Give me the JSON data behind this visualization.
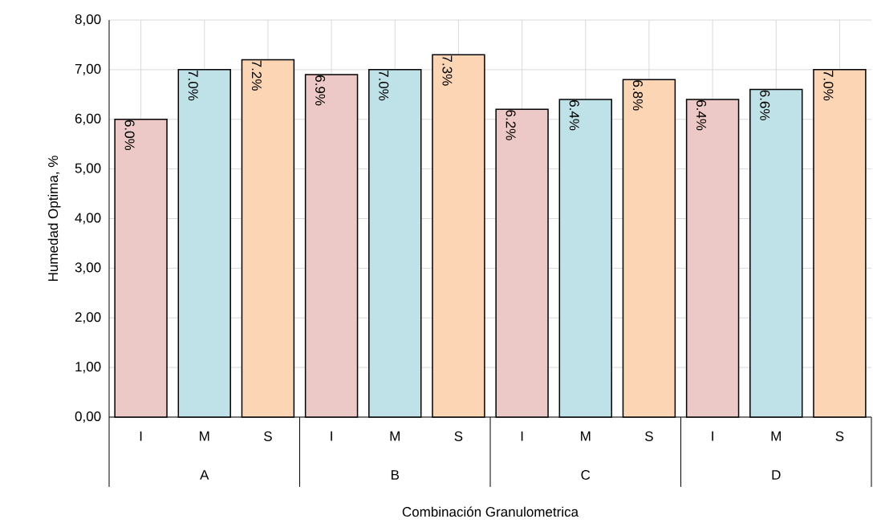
{
  "chart_data": {
    "type": "bar",
    "xlabel": "Combinación Granulometrica",
    "ylabel": "Humedad Optima, %",
    "categories": [
      "I",
      "M",
      "S",
      "I",
      "M",
      "S",
      "I",
      "M",
      "S",
      "I",
      "M",
      "S"
    ],
    "values": [
      6.0,
      7.0,
      7.2,
      6.9,
      7.0,
      7.3,
      6.2,
      6.4,
      6.8,
      6.4,
      6.6,
      7.0
    ],
    "colors": [
      "#ecc9c6",
      "#bfe2e8",
      "#fcd5b4",
      "#ecc9c6",
      "#bfe2e8",
      "#fcd5b4",
      "#ecc9c6",
      "#bfe2e8",
      "#fcd5b4",
      "#ecc9c6",
      "#bfe2e8",
      "#fcd5b4"
    ],
    "value_labels": [
      "6.0%",
      "7.0%",
      "7.2%",
      "6.9%",
      "7.0%",
      "7.3%",
      "6.2%",
      "6.4%",
      "6.8%",
      "6.4%",
      "6.6%",
      "7.0%"
    ],
    "annotations": [
      "A",
      "B",
      "C",
      "D"
    ],
    "ylim": [
      0,
      8
    ],
    "yticks": [
      {
        "value": 0,
        "label": "0,00"
      },
      {
        "value": 1,
        "label": "1,00"
      },
      {
        "value": 2,
        "label": "2,00"
      },
      {
        "value": 3,
        "label": "3,00"
      },
      {
        "value": 4,
        "label": "4,00"
      },
      {
        "value": 5,
        "label": "5,00"
      },
      {
        "value": 6,
        "label": "6,00"
      },
      {
        "value": 7,
        "label": "7,00"
      },
      {
        "value": 8,
        "label": "8,00"
      }
    ],
    "grid": true
  }
}
